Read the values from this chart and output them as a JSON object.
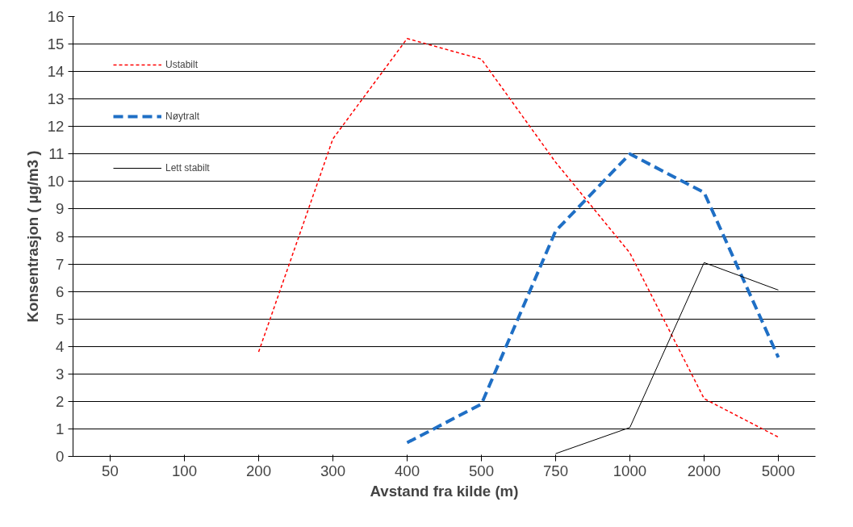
{
  "chart_data": {
    "type": "line",
    "xlabel": "Avstand fra kilde (m)",
    "ylabel": "Konsentrasjon ( µg/m3 )",
    "categories": [
      "50",
      "100",
      "200",
      "300",
      "400",
      "500",
      "750",
      "1000",
      "2000",
      "5000"
    ],
    "series": [
      {
        "name": "Ustabilt",
        "color": "#ff0000",
        "line_style": "dotted",
        "values": [
          null,
          null,
          3.8,
          11.55,
          15.2,
          14.45,
          10.7,
          7.4,
          2.1,
          0.7
        ]
      },
      {
        "name": "Nøytralt",
        "color": "#1f6fc5",
        "line_style": "dashed",
        "values": [
          null,
          null,
          null,
          null,
          0.5,
          1.9,
          8.2,
          11.0,
          9.6,
          3.6
        ]
      },
      {
        "name": "Lett stabilt",
        "color": "#000000",
        "line_style": "solid",
        "values": [
          null,
          null,
          null,
          null,
          null,
          null,
          0.1,
          1.05,
          7.05,
          6.05
        ]
      }
    ],
    "ylim": [
      0,
      16
    ],
    "yticks": [
      0,
      1,
      2,
      3,
      4,
      5,
      6,
      7,
      8,
      9,
      10,
      11,
      12,
      13,
      14,
      15,
      16
    ],
    "grid": "y",
    "legend": "top left"
  }
}
